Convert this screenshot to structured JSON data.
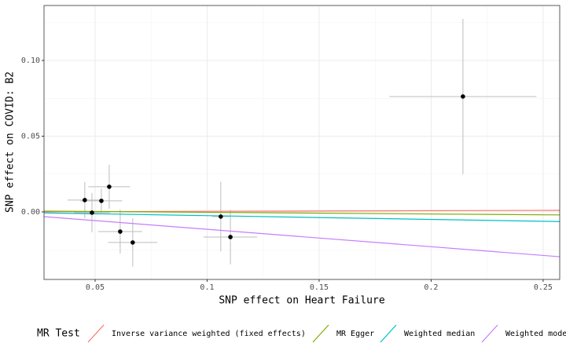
{
  "chart_data": {
    "type": "scatter",
    "x_label": "SNP effect on Heart Failure",
    "y_label": "SNP effect on COVID: B2",
    "xlim": [
      0.0272,
      0.2574
    ],
    "ylim": [
      -0.0446,
      0.1363
    ],
    "xticks": [
      0.05,
      0.1,
      0.15,
      0.2,
      0.25
    ],
    "yticks": [
      {
        "value": 0,
        "label": "0.00"
      },
      0.05,
      {
        "value": 0.1,
        "label": "0.10"
      }
    ],
    "grid": true,
    "points": {
      "color": "#000000",
      "err_color": "#bdbdbd",
      "x": [
        0.0454,
        0.0486,
        0.0528,
        0.0563,
        0.0612,
        0.0668,
        0.1061,
        0.1104,
        0.2142
      ],
      "y": [
        0.0078,
        -0.0005,
        0.0073,
        0.0166,
        -0.013,
        -0.0202,
        -0.0031,
        -0.0166,
        0.0762
      ],
      "x_err": [
        0.0077,
        0.008,
        0.0093,
        0.0093,
        0.0098,
        0.011,
        0.004,
        0.012,
        0.0328
      ],
      "y_err": [
        0.012,
        0.013,
        0.008,
        0.0145,
        0.0145,
        0.016,
        0.023,
        0.018,
        0.0513
      ]
    },
    "legend_title": "MR Test",
    "legend": "bottom",
    "lines": [
      {
        "name": "Inverse variance weighted (fixed effects)",
        "color": "#F8766D",
        "slope": 0.004,
        "intercept": 0
      },
      {
        "name": "MR Egger",
        "color": "#7CAE00",
        "slope": -0.0109,
        "intercept": 0.0008
      },
      {
        "name": "Weighted median",
        "color": "#00BFC4",
        "slope": -0.0248,
        "intercept": 0
      },
      {
        "name": "Weighted mode",
        "color": "#C77CFF",
        "slope": -0.115,
        "intercept": 0
      }
    ]
  }
}
